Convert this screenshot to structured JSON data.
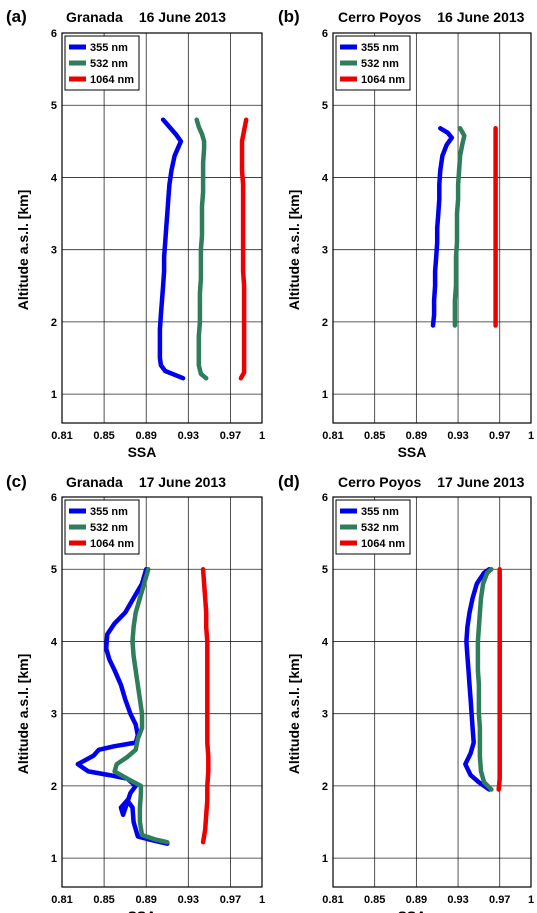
{
  "chart_data": [
    {
      "type": "line",
      "panel_label": "(a)",
      "title_site": "Granada",
      "title_date": "16 June 2013",
      "xlabel": "SSA",
      "ylabel": "Altitude a.s.l. [km]",
      "xlim": [
        0.81,
        1
      ],
      "ylim": [
        0.6,
        6
      ],
      "xticks": [
        "0.81",
        "0.85",
        "0.89",
        "0.93",
        "0.97",
        "1"
      ],
      "yticks": [
        "1",
        "2",
        "3",
        "4",
        "5",
        "6"
      ],
      "grid": true,
      "legend": "top-left",
      "series": [
        {
          "name": "355 nm",
          "color": "#0000ee",
          "points": [
            [
              0.925,
              1.22
            ],
            [
              0.915,
              1.28
            ],
            [
              0.908,
              1.32
            ],
            [
              0.904,
              1.4
            ],
            [
              0.903,
              1.5
            ],
            [
              0.903,
              1.7
            ],
            [
              0.903,
              1.9
            ],
            [
              0.904,
              2.1
            ],
            [
              0.905,
              2.3
            ],
            [
              0.906,
              2.5
            ],
            [
              0.907,
              2.7
            ],
            [
              0.907,
              2.9
            ],
            [
              0.908,
              3.1
            ],
            [
              0.909,
              3.3
            ],
            [
              0.91,
              3.5
            ],
            [
              0.911,
              3.7
            ],
            [
              0.912,
              3.9
            ],
            [
              0.914,
              4.1
            ],
            [
              0.917,
              4.3
            ],
            [
              0.923,
              4.5
            ],
            [
              0.918,
              4.6
            ],
            [
              0.912,
              4.7
            ],
            [
              0.906,
              4.8
            ]
          ]
        },
        {
          "name": "532 nm",
          "color": "#2e7d5b",
          "points": [
            [
              0.947,
              1.22
            ],
            [
              0.942,
              1.28
            ],
            [
              0.94,
              1.4
            ],
            [
              0.94,
              1.6
            ],
            [
              0.94,
              1.8
            ],
            [
              0.941,
              2.0
            ],
            [
              0.941,
              2.2
            ],
            [
              0.941,
              2.4
            ],
            [
              0.942,
              2.6
            ],
            [
              0.942,
              2.8
            ],
            [
              0.942,
              3.0
            ],
            [
              0.943,
              3.2
            ],
            [
              0.943,
              3.4
            ],
            [
              0.943,
              3.6
            ],
            [
              0.944,
              3.8
            ],
            [
              0.944,
              4.0
            ],
            [
              0.944,
              4.2
            ],
            [
              0.945,
              4.4
            ],
            [
              0.945,
              4.5
            ],
            [
              0.943,
              4.6
            ],
            [
              0.94,
              4.7
            ],
            [
              0.938,
              4.8
            ]
          ]
        },
        {
          "name": "1064 nm",
          "color": "#ee0000",
          "points": [
            [
              0.98,
              1.22
            ],
            [
              0.983,
              1.3
            ],
            [
              0.983,
              1.5
            ],
            [
              0.983,
              1.7
            ],
            [
              0.983,
              1.9
            ],
            [
              0.983,
              2.1
            ],
            [
              0.983,
              2.3
            ],
            [
              0.983,
              2.5
            ],
            [
              0.982,
              2.7
            ],
            [
              0.982,
              2.9
            ],
            [
              0.982,
              3.1
            ],
            [
              0.982,
              3.3
            ],
            [
              0.982,
              3.5
            ],
            [
              0.982,
              3.7
            ],
            [
              0.982,
              3.9
            ],
            [
              0.981,
              4.1
            ],
            [
              0.981,
              4.3
            ],
            [
              0.981,
              4.5
            ],
            [
              0.983,
              4.65
            ],
            [
              0.985,
              4.8
            ]
          ]
        }
      ]
    },
    {
      "type": "line",
      "panel_label": "(b)",
      "title_site": "Cerro Poyos",
      "title_date": "16 June 2013",
      "xlabel": "SSA",
      "ylabel": "Altitude a.s.l. [km]",
      "xlim": [
        0.81,
        1
      ],
      "ylim": [
        0.6,
        6
      ],
      "xticks": [
        "0.81",
        "0.85",
        "0.89",
        "0.93",
        "0.97",
        "1"
      ],
      "yticks": [
        "1",
        "2",
        "3",
        "4",
        "5",
        "6"
      ],
      "grid": true,
      "legend": "top-left",
      "series": [
        {
          "name": "355 nm",
          "color": "#0000ee",
          "points": [
            [
              0.906,
              1.95
            ],
            [
              0.907,
              2.1
            ],
            [
              0.907,
              2.3
            ],
            [
              0.908,
              2.5
            ],
            [
              0.908,
              2.7
            ],
            [
              0.909,
              2.9
            ],
            [
              0.91,
              3.1
            ],
            [
              0.91,
              3.3
            ],
            [
              0.911,
              3.5
            ],
            [
              0.912,
              3.7
            ],
            [
              0.912,
              3.9
            ],
            [
              0.913,
              4.1
            ],
            [
              0.915,
              4.3
            ],
            [
              0.919,
              4.45
            ],
            [
              0.924,
              4.55
            ],
            [
              0.92,
              4.62
            ],
            [
              0.913,
              4.68
            ]
          ]
        },
        {
          "name": "532 nm",
          "color": "#2e7d5b",
          "points": [
            [
              0.927,
              1.95
            ],
            [
              0.927,
              2.1
            ],
            [
              0.927,
              2.3
            ],
            [
              0.928,
              2.5
            ],
            [
              0.928,
              2.7
            ],
            [
              0.928,
              2.9
            ],
            [
              0.929,
              3.1
            ],
            [
              0.929,
              3.3
            ],
            [
              0.929,
              3.5
            ],
            [
              0.93,
              3.7
            ],
            [
              0.93,
              3.9
            ],
            [
              0.931,
              4.1
            ],
            [
              0.932,
              4.3
            ],
            [
              0.934,
              4.45
            ],
            [
              0.936,
              4.58
            ],
            [
              0.932,
              4.68
            ]
          ]
        },
        {
          "name": "1064 nm",
          "color": "#ee0000",
          "points": [
            [
              0.966,
              1.95
            ],
            [
              0.966,
              2.3
            ],
            [
              0.966,
              2.7
            ],
            [
              0.966,
              3.1
            ],
            [
              0.966,
              3.5
            ],
            [
              0.966,
              3.9
            ],
            [
              0.966,
              4.3
            ],
            [
              0.966,
              4.68
            ]
          ]
        }
      ]
    },
    {
      "type": "line",
      "panel_label": "(c)",
      "title_site": "Granada",
      "title_date": "17 June 2013",
      "xlabel": "SSA",
      "ylabel": "Altitude a.s.l. [km]",
      "xlim": [
        0.81,
        1
      ],
      "ylim": [
        0.6,
        6
      ],
      "xticks": [
        "0.81",
        "0.85",
        "0.89",
        "0.93",
        "0.97",
        "1"
      ],
      "yticks": [
        "1",
        "2",
        "3",
        "4",
        "5",
        "6"
      ],
      "grid": true,
      "legend": "top-left",
      "series": [
        {
          "name": "355 nm",
          "color": "#0000ee",
          "points": [
            [
              0.91,
              1.2
            ],
            [
              0.895,
              1.25
            ],
            [
              0.882,
              1.3
            ],
            [
              0.878,
              1.5
            ],
            [
              0.877,
              1.7
            ],
            [
              0.872,
              1.8
            ],
            [
              0.866,
              1.7
            ],
            [
              0.868,
              1.6
            ],
            [
              0.875,
              1.9
            ],
            [
              0.88,
              2.0
            ],
            [
              0.872,
              2.1
            ],
            [
              0.855,
              2.15
            ],
            [
              0.835,
              2.2
            ],
            [
              0.825,
              2.3
            ],
            [
              0.84,
              2.42
            ],
            [
              0.845,
              2.5
            ],
            [
              0.86,
              2.55
            ],
            [
              0.88,
              2.6
            ],
            [
              0.882,
              2.7
            ],
            [
              0.88,
              2.85
            ],
            [
              0.875,
              3.0
            ],
            [
              0.87,
              3.2
            ],
            [
              0.866,
              3.4
            ],
            [
              0.86,
              3.6
            ],
            [
              0.855,
              3.75
            ],
            [
              0.852,
              3.9
            ],
            [
              0.853,
              4.1
            ],
            [
              0.86,
              4.25
            ],
            [
              0.87,
              4.4
            ],
            [
              0.878,
              4.6
            ],
            [
              0.886,
              4.8
            ],
            [
              0.89,
              5.0
            ]
          ]
        },
        {
          "name": "532 nm",
          "color": "#2e7d5b",
          "points": [
            [
              0.91,
              1.22
            ],
            [
              0.898,
              1.26
            ],
            [
              0.886,
              1.32
            ],
            [
              0.884,
              1.5
            ],
            [
              0.884,
              1.7
            ],
            [
              0.885,
              1.9
            ],
            [
              0.885,
              2.0
            ],
            [
              0.872,
              2.1
            ],
            [
              0.86,
              2.2
            ],
            [
              0.862,
              2.3
            ],
            [
              0.872,
              2.4
            ],
            [
              0.88,
              2.5
            ],
            [
              0.882,
              2.65
            ],
            [
              0.886,
              2.8
            ],
            [
              0.886,
              3.0
            ],
            [
              0.884,
              3.2
            ],
            [
              0.882,
              3.4
            ],
            [
              0.88,
              3.6
            ],
            [
              0.878,
              3.8
            ],
            [
              0.877,
              4.0
            ],
            [
              0.878,
              4.2
            ],
            [
              0.88,
              4.4
            ],
            [
              0.884,
              4.6
            ],
            [
              0.888,
              4.8
            ],
            [
              0.892,
              5.0
            ]
          ]
        },
        {
          "name": "1064 nm",
          "color": "#ee0000",
          "points": [
            [
              0.944,
              1.22
            ],
            [
              0.946,
              1.4
            ],
            [
              0.947,
              1.6
            ],
            [
              0.948,
              1.8
            ],
            [
              0.948,
              2.0
            ],
            [
              0.949,
              2.2
            ],
            [
              0.949,
              2.4
            ],
            [
              0.948,
              2.6
            ],
            [
              0.948,
              2.8
            ],
            [
              0.948,
              3.0
            ],
            [
              0.948,
              3.2
            ],
            [
              0.948,
              3.4
            ],
            [
              0.948,
              3.6
            ],
            [
              0.948,
              3.8
            ],
            [
              0.948,
              4.0
            ],
            [
              0.947,
              4.2
            ],
            [
              0.947,
              4.4
            ],
            [
              0.946,
              4.6
            ],
            [
              0.945,
              4.8
            ],
            [
              0.944,
              5.0
            ]
          ]
        }
      ]
    },
    {
      "type": "line",
      "panel_label": "(d)",
      "title_site": "Cerro Poyos",
      "title_date": "17 June 2013",
      "xlabel": "SSA",
      "ylabel": "Altitude a.s.l. [km]",
      "xlim": [
        0.81,
        1
      ],
      "ylim": [
        0.6,
        6
      ],
      "xticks": [
        "0.81",
        "0.85",
        "0.89",
        "0.93",
        "0.97",
        "1"
      ],
      "yticks": [
        "1",
        "2",
        "3",
        "4",
        "5",
        "6"
      ],
      "grid": true,
      "legend": "top-left",
      "series": [
        {
          "name": "355 nm",
          "color": "#0000ee",
          "points": [
            [
              0.96,
              1.95
            ],
            [
              0.95,
              2.05
            ],
            [
              0.942,
              2.15
            ],
            [
              0.937,
              2.3
            ],
            [
              0.942,
              2.45
            ],
            [
              0.945,
              2.6
            ],
            [
              0.944,
              2.8
            ],
            [
              0.943,
              3.0
            ],
            [
              0.942,
              3.2
            ],
            [
              0.941,
              3.4
            ],
            [
              0.94,
              3.6
            ],
            [
              0.939,
              3.8
            ],
            [
              0.938,
              4.0
            ],
            [
              0.939,
              4.2
            ],
            [
              0.941,
              4.4
            ],
            [
              0.944,
              4.6
            ],
            [
              0.948,
              4.8
            ],
            [
              0.955,
              4.95
            ],
            [
              0.96,
              5.0
            ]
          ]
        },
        {
          "name": "532 nm",
          "color": "#2e7d5b",
          "points": [
            [
              0.962,
              1.95
            ],
            [
              0.955,
              2.05
            ],
            [
              0.952,
              2.2
            ],
            [
              0.951,
              2.4
            ],
            [
              0.951,
              2.6
            ],
            [
              0.951,
              2.8
            ],
            [
              0.95,
              3.0
            ],
            [
              0.95,
              3.2
            ],
            [
              0.95,
              3.4
            ],
            [
              0.949,
              3.6
            ],
            [
              0.949,
              3.8
            ],
            [
              0.949,
              4.0
            ],
            [
              0.95,
              4.2
            ],
            [
              0.951,
              4.4
            ],
            [
              0.952,
              4.6
            ],
            [
              0.954,
              4.8
            ],
            [
              0.958,
              4.95
            ],
            [
              0.962,
              5.0
            ]
          ]
        },
        {
          "name": "1064 nm",
          "color": "#ee0000",
          "points": [
            [
              0.969,
              1.95
            ],
            [
              0.97,
              2.1
            ],
            [
              0.97,
              2.3
            ],
            [
              0.97,
              2.5
            ],
            [
              0.97,
              2.7
            ],
            [
              0.97,
              2.9
            ],
            [
              0.97,
              3.1
            ],
            [
              0.97,
              3.3
            ],
            [
              0.97,
              3.5
            ],
            [
              0.97,
              3.7
            ],
            [
              0.97,
              3.9
            ],
            [
              0.97,
              4.1
            ],
            [
              0.97,
              4.3
            ],
            [
              0.97,
              4.5
            ],
            [
              0.97,
              4.7
            ],
            [
              0.97,
              4.9
            ],
            [
              0.97,
              5.0
            ]
          ]
        }
      ]
    }
  ]
}
